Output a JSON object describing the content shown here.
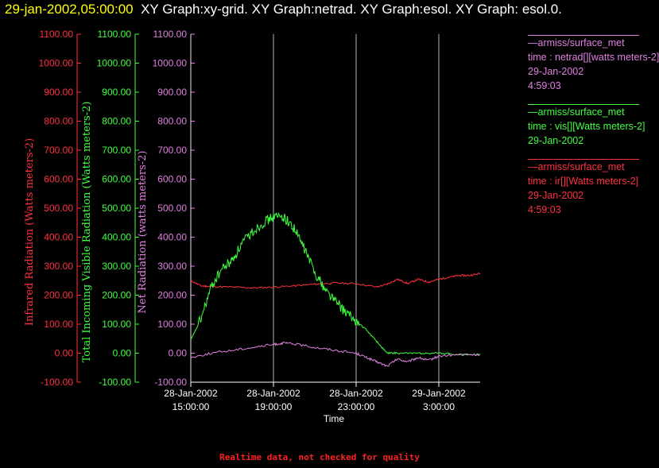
{
  "title": {
    "timestamp": "29-jan-2002,05:00:00",
    "text": "XY Graph:xy-grid.  XY Graph:netrad.  XY Graph:esol.  XY Graph: esol.0."
  },
  "legend": [
    {
      "source": "—armiss/surface_met",
      "desc": "time : netrad[][watts meters-2]",
      "date": "29-Jan-2002",
      "time": "4:59:03",
      "color": "#e080e0"
    },
    {
      "source": "—armiss/surface_met",
      "desc": "time : vis[][Watts meters-2]",
      "date": "29-Jan-2002",
      "time": "",
      "color": "#40ff40"
    },
    {
      "source": "—armiss/surface_met",
      "desc": "time : ir[][Watts meters-2]",
      "date": "29-Jan-2002",
      "time": "4:59:03",
      "color": "#ff3040"
    }
  ],
  "footer": "Realtime data, not checked for quality",
  "chart_data": {
    "type": "line",
    "xlabel": "Time",
    "x_ticks": [
      {
        "hours": 15,
        "date": "28-Jan-2002",
        "time": "15:00:00"
      },
      {
        "hours": 19,
        "date": "28-Jan-2002",
        "time": "19:00:00"
      },
      {
        "hours": 23,
        "date": "28-Jan-2002",
        "time": "23:00:00"
      },
      {
        "hours": 27,
        "date": "29-Jan-2002",
        "time": "3:00:00"
      }
    ],
    "x_hours_range": [
      15,
      29
    ],
    "x_hours_from": "28-Jan-2002 00:00:00",
    "ylim": [
      -100,
      1100
    ],
    "y_ticks": [
      "-100.00",
      "0.00",
      "100.00",
      "200.00",
      "300.00",
      "400.00",
      "500.00",
      "600.00",
      "700.00",
      "800.00",
      "900.00",
      "1000.00",
      "1100.00"
    ],
    "axes": [
      {
        "name": "ir",
        "label": "Infrared Radiation (Watts meters-2)",
        "color": "#ff3040"
      },
      {
        "name": "vis",
        "label": "Total Incoming Visible Radiation (Watts meters-2)",
        "color": "#40ff40"
      },
      {
        "name": "netrad",
        "label": "Net Radiation (watts meters-2)",
        "color": "#e080e0"
      }
    ],
    "grid": "vertical",
    "series": [
      {
        "name": "ir",
        "color": "#ff3040",
        "points": [
          [
            15.0,
            250
          ],
          [
            15.5,
            232
          ],
          [
            16,
            230
          ],
          [
            17,
            228
          ],
          [
            18,
            225
          ],
          [
            19,
            228
          ],
          [
            20,
            232
          ],
          [
            21,
            238
          ],
          [
            22,
            242
          ],
          [
            23,
            240
          ],
          [
            24,
            228
          ],
          [
            24.5,
            238
          ],
          [
            25,
            255
          ],
          [
            25.5,
            240
          ],
          [
            26,
            255
          ],
          [
            26.5,
            245
          ],
          [
            27,
            255
          ],
          [
            27.5,
            262
          ],
          [
            28,
            268
          ],
          [
            28.5,
            268
          ],
          [
            29.0,
            275
          ]
        ]
      },
      {
        "name": "vis",
        "color": "#40ff40",
        "points": [
          [
            15.0,
            45
          ],
          [
            15.5,
            120
          ],
          [
            16,
            230
          ],
          [
            16.5,
            290
          ],
          [
            17,
            320
          ],
          [
            17.5,
            380
          ],
          [
            18,
            420
          ],
          [
            18.5,
            450
          ],
          [
            19,
            470
          ],
          [
            19.5,
            470
          ],
          [
            20,
            430
          ],
          [
            20.5,
            360
          ],
          [
            21,
            280
          ],
          [
            21.5,
            220
          ],
          [
            22,
            180
          ],
          [
            22.5,
            140
          ],
          [
            23,
            110
          ],
          [
            23.5,
            80
          ],
          [
            24,
            40
          ],
          [
            24.5,
            0
          ],
          [
            25,
            0
          ],
          [
            26,
            0
          ],
          [
            27,
            0
          ],
          [
            28,
            -5
          ],
          [
            29.0,
            -5
          ]
        ]
      },
      {
        "name": "netrad",
        "color": "#e080e0",
        "points": [
          [
            15.0,
            -15
          ],
          [
            16,
            0
          ],
          [
            17,
            10
          ],
          [
            18,
            20
          ],
          [
            19,
            30
          ],
          [
            19.5,
            35
          ],
          [
            20,
            32
          ],
          [
            21,
            20
          ],
          [
            22,
            10
          ],
          [
            23,
            0
          ],
          [
            23.5,
            -15
          ],
          [
            24,
            -30
          ],
          [
            24.5,
            -45
          ],
          [
            25,
            -20
          ],
          [
            25.5,
            -30
          ],
          [
            26,
            -15
          ],
          [
            26.5,
            -25
          ],
          [
            27,
            -10
          ],
          [
            28,
            -5
          ],
          [
            29.0,
            -5
          ]
        ]
      }
    ]
  }
}
